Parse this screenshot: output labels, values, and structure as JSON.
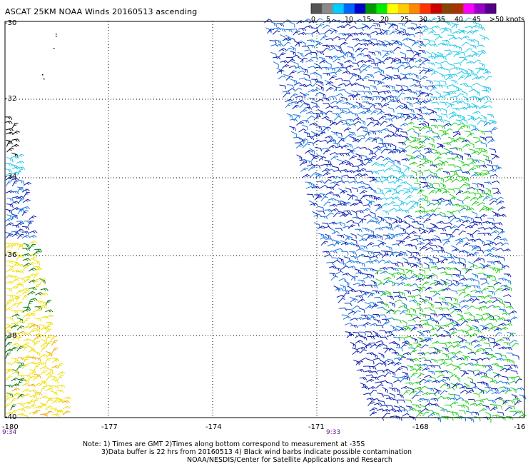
{
  "title": "ASCAT 25KM NOAA Winds 20160513 ascending",
  "legend": {
    "labels": [
      "0",
      "5",
      "10",
      "15",
      "20",
      "25",
      "30",
      "35",
      "40",
      "45",
      ">50 knots"
    ],
    "colors": [
      "#555555",
      "#8a8a8a",
      "#00ccff",
      "#0066ff",
      "#0000cc",
      "#009900",
      "#00ee00",
      "#ffff00",
      "#ffcc00",
      "#ff8800",
      "#ff3300",
      "#cc0000",
      "#884400",
      "#aa3300",
      "#ff00ff",
      "#9900cc",
      "#550088"
    ]
  },
  "lat_labels": [
    "-30",
    "-32",
    "-34",
    "-36",
    "-38",
    "-40"
  ],
  "lon_labels": [
    "-180",
    "-177",
    "-174",
    "-171",
    "-168",
    "-16"
  ],
  "times": [
    "9:34",
    "9:33"
  ],
  "notes": [
    "Note: 1) Times are GMT 2)Times along bottom correspond to measurement at -35S",
    "3)Data buffer is 22 hrs from 20160513 4) Black wind barbs indicate possible contamination",
    "NOAA/NESDIS/Center for Satellite Applications and Research"
  ],
  "barb_colors": {
    "blue": "#0b1fb0",
    "light_blue": "#1a78e0",
    "cyan": "#22c8e8",
    "green": "#22cc22",
    "dark_green": "#0a7a0a",
    "yellow": "#f0e010",
    "orange": "#f0a800"
  }
}
